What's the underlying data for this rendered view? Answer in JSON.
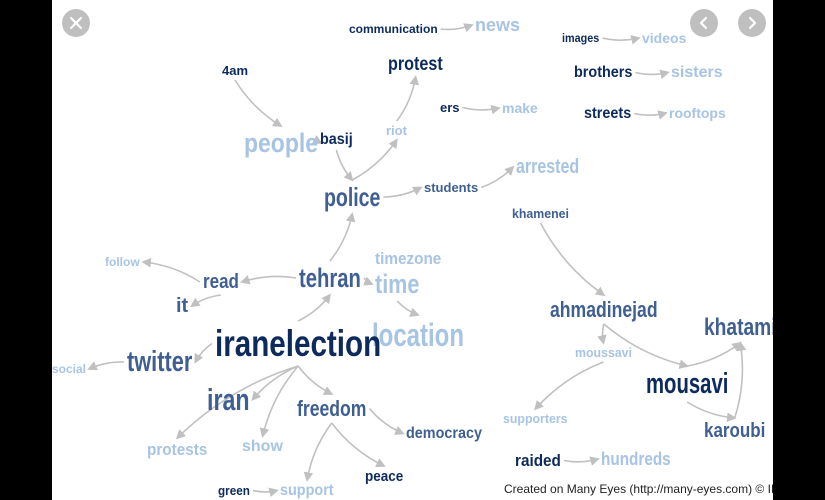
{
  "words": [
    {
      "id": "communication",
      "text": "communication",
      "c": "dark"
    },
    {
      "id": "news",
      "text": "news",
      "c": "light"
    },
    {
      "id": "images",
      "text": "images",
      "c": "dark"
    },
    {
      "id": "videos",
      "text": "videos",
      "c": "light"
    },
    {
      "id": "brothers",
      "text": "brothers",
      "c": "dark"
    },
    {
      "id": "sisters",
      "text": "sisters",
      "c": "light"
    },
    {
      "id": "streets",
      "text": "streets",
      "c": "dark"
    },
    {
      "id": "rooftops",
      "text": "rooftops",
      "c": "light"
    },
    {
      "id": "4am",
      "text": "4am",
      "c": "dark"
    },
    {
      "id": "protest",
      "text": "protest",
      "c": "dark"
    },
    {
      "id": "ers",
      "text": "ers",
      "c": "dark"
    },
    {
      "id": "make",
      "text": "make",
      "c": "light"
    },
    {
      "id": "people",
      "text": "people",
      "c": "light"
    },
    {
      "id": "basij",
      "text": "basij",
      "c": "dark"
    },
    {
      "id": "riot",
      "text": "riot",
      "c": "light"
    },
    {
      "id": "arrested",
      "text": "arrested",
      "c": "light"
    },
    {
      "id": "police",
      "text": "police",
      "c": "mid"
    },
    {
      "id": "students",
      "text": "students",
      "c": "mid"
    },
    {
      "id": "khamenei",
      "text": "khamenei",
      "c": "mid"
    },
    {
      "id": "follow",
      "text": "follow",
      "c": "light"
    },
    {
      "id": "read",
      "text": "read",
      "c": "mid"
    },
    {
      "id": "tehran",
      "text": "tehran",
      "c": "mid"
    },
    {
      "id": "timezone",
      "text": "timezone",
      "c": "light"
    },
    {
      "id": "time",
      "text": "time",
      "c": "light"
    },
    {
      "id": "it",
      "text": "it",
      "c": "mid"
    },
    {
      "id": "location",
      "text": "location",
      "c": "light"
    },
    {
      "id": "ahmadinejad",
      "text": "ahmadinejad",
      "c": "mid"
    },
    {
      "id": "khatami",
      "text": "khatami",
      "c": "mid"
    },
    {
      "id": "iranelection",
      "text": "iranelection",
      "c": "dark"
    },
    {
      "id": "moussavi",
      "text": "moussavi",
      "c": "light"
    },
    {
      "id": "social",
      "text": "social",
      "c": "light"
    },
    {
      "id": "twitter",
      "text": "twitter",
      "c": "mid"
    },
    {
      "id": "mousavi",
      "text": "mousavi",
      "c": "dark"
    },
    {
      "id": "iran",
      "text": "iran",
      "c": "mid"
    },
    {
      "id": "freedom",
      "text": "freedom",
      "c": "mid"
    },
    {
      "id": "supporters",
      "text": "supporters",
      "c": "light"
    },
    {
      "id": "democracy",
      "text": "democracy",
      "c": "mid"
    },
    {
      "id": "karoubi",
      "text": "karoubi",
      "c": "mid"
    },
    {
      "id": "protests",
      "text": "protests",
      "c": "light"
    },
    {
      "id": "show",
      "text": "show",
      "c": "light"
    },
    {
      "id": "raided",
      "text": "raided",
      "c": "dark"
    },
    {
      "id": "hundreds",
      "text": "hundreds",
      "c": "light"
    },
    {
      "id": "peace",
      "text": "peace",
      "c": "dark"
    },
    {
      "id": "green",
      "text": "green",
      "c": "dark"
    },
    {
      "id": "support",
      "text": "support",
      "c": "light"
    }
  ],
  "edges": [
    [
      "communication",
      "news"
    ],
    [
      "images",
      "videos"
    ],
    [
      "brothers",
      "sisters"
    ],
    [
      "streets",
      "rooftops"
    ],
    [
      "ers",
      "make"
    ],
    [
      "4am",
      "people"
    ],
    [
      "basij",
      "people"
    ],
    [
      "basij",
      "police"
    ],
    [
      "riot",
      "protest"
    ],
    [
      "police",
      "riot"
    ],
    [
      "police",
      "students"
    ],
    [
      "students",
      "arrested"
    ],
    [
      "tehran",
      "police"
    ],
    [
      "tehran",
      "time"
    ],
    [
      "tehran",
      "read"
    ],
    [
      "read",
      "follow"
    ],
    [
      "read",
      "it"
    ],
    [
      "iranelection",
      "tehran"
    ],
    [
      "iranelection",
      "twitter"
    ],
    [
      "twitter",
      "social"
    ],
    [
      "iranelection",
      "iran"
    ],
    [
      "iranelection",
      "freedom"
    ],
    [
      "iranelection",
      "protests"
    ],
    [
      "iranelection",
      "show"
    ],
    [
      "freedom",
      "democracy"
    ],
    [
      "freedom",
      "peace"
    ],
    [
      "freedom",
      "support"
    ],
    [
      "green",
      "support"
    ],
    [
      "khamenei",
      "ahmadinejad"
    ],
    [
      "ahmadinejad",
      "moussavi"
    ],
    [
      "ahmadinejad",
      "mousavi"
    ],
    [
      "mousavi",
      "khatami"
    ],
    [
      "moussavi",
      "supporters"
    ],
    [
      "karoubi",
      "khatami"
    ],
    [
      "mousavi",
      "karoubi"
    ],
    [
      "raided",
      "hundreds"
    ],
    [
      "time",
      "location"
    ]
  ],
  "colors": {
    "dark": "#0d2a5c",
    "mid": "#3f5f93",
    "light": "#a8c4e4",
    "edge": "#c0c0c0"
  },
  "controls": {
    "close": "close-icon",
    "prev": "chevron-left-icon",
    "next": "chevron-right-icon"
  },
  "credit": "Created on Many Eyes (http://many-eyes.com) © IBM"
}
